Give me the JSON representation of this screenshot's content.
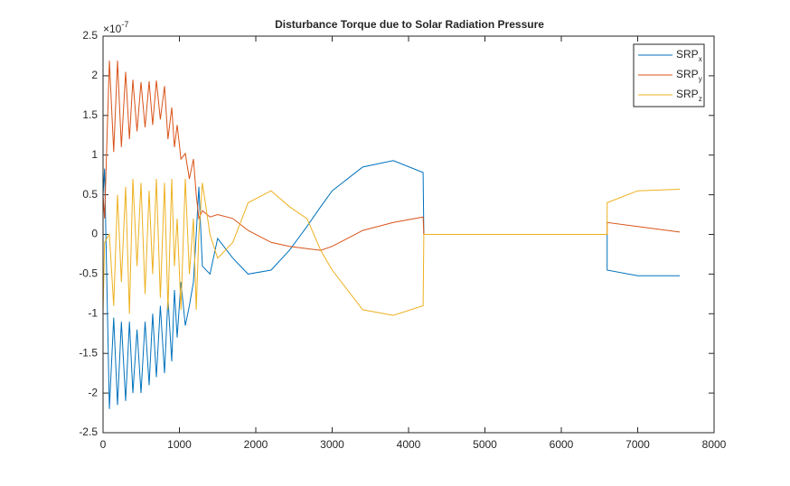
{
  "chart_data": {
    "type": "line",
    "title": "Disturbance Torque due to Solar Radiation Pressure",
    "y_multiplier": {
      "base": "×10",
      "exponent": "-7"
    },
    "xlim": [
      0,
      8000
    ],
    "xticks": [
      0,
      1000,
      2000,
      3000,
      4000,
      5000,
      6000,
      7000,
      8000
    ],
    "ylim": [
      -2.5,
      2.5
    ],
    "yticks": [
      -2.5,
      -2,
      -1.5,
      -1,
      -0.5,
      0,
      0.5,
      1,
      1.5,
      2,
      2.5
    ],
    "legend": "top-right",
    "series": [
      {
        "name": "SRP",
        "subscript": "x",
        "color": "#0072bd",
        "x": [
          0,
          20,
          83,
          140,
          189,
          240,
          296,
          345,
          391,
          445,
          497,
          550,
          604,
          650,
          698,
          750,
          805,
          850,
          899,
          935,
          970,
          1020,
          1077,
          1130,
          1183,
          1220,
          1254,
          1300,
          1400,
          1500,
          1700,
          1900,
          2200,
          2440,
          2670,
          2850,
          3000,
          3400,
          3800,
          4190,
          4200,
          6600,
          6600,
          7000,
          7550
        ],
        "values": [
          0.5,
          0.83,
          -2.2,
          -1.05,
          -2.15,
          -1.1,
          -2.1,
          -1.1,
          -2.0,
          -1.2,
          -2.0,
          -1.1,
          -1.9,
          -1.0,
          -1.8,
          -0.9,
          -1.75,
          -0.8,
          -1.6,
          -0.7,
          -1.3,
          -0.6,
          -1.15,
          -0.9,
          -0.6,
          0.0,
          0.6,
          -0.4,
          -0.5,
          -0.05,
          -0.3,
          -0.5,
          -0.45,
          -0.2,
          0.1,
          0.35,
          0.55,
          0.85,
          0.93,
          0.78,
          0,
          0,
          -0.45,
          -0.52,
          -0.52
        ]
      },
      {
        "name": "SRP",
        "subscript": "y",
        "color": "#d95319",
        "x": [
          0,
          20,
          83,
          140,
          189,
          240,
          296,
          345,
          391,
          445,
          497,
          550,
          604,
          650,
          698,
          750,
          805,
          850,
          899,
          935,
          970,
          1020,
          1077,
          1130,
          1183,
          1220,
          1254,
          1300,
          1400,
          1500,
          1700,
          1900,
          2200,
          2440,
          2670,
          2850,
          3000,
          3400,
          3800,
          4190,
          4200,
          6600,
          6600,
          7000,
          7550
        ],
        "values": [
          0.5,
          0.2,
          2.19,
          1.04,
          2.19,
          1.1,
          2.05,
          1.2,
          1.95,
          1.3,
          1.92,
          1.35,
          1.93,
          1.38,
          1.94,
          1.45,
          1.87,
          1.2,
          1.6,
          1.1,
          1.38,
          0.95,
          1.02,
          0.7,
          0.95,
          0.5,
          0.2,
          0.3,
          0.22,
          0.25,
          0.2,
          0.05,
          -0.1,
          -0.15,
          -0.18,
          -0.2,
          -0.15,
          0.05,
          0.15,
          0.22,
          0,
          0,
          0.15,
          0.1,
          0.03
        ]
      },
      {
        "name": "SRP",
        "subscript": "z",
        "color": "#edb120",
        "x": [
          0,
          20,
          83,
          140,
          189,
          240,
          296,
          345,
          391,
          445,
          497,
          550,
          604,
          650,
          698,
          750,
          805,
          850,
          899,
          935,
          970,
          1020,
          1077,
          1130,
          1183,
          1220,
          1254,
          1300,
          1400,
          1500,
          1700,
          1900,
          2200,
          2440,
          2670,
          2850,
          3000,
          3400,
          3800,
          4190,
          4200,
          6600,
          6600,
          7000,
          7550
        ],
        "values": [
          -1.0,
          -0.1,
          0.0,
          -0.9,
          0.5,
          -0.6,
          0.6,
          -1.0,
          0.7,
          -0.4,
          0.65,
          -0.75,
          0.55,
          -0.5,
          0.7,
          -0.8,
          0.65,
          -0.95,
          0.7,
          -0.4,
          0.2,
          -0.95,
          0.7,
          -0.5,
          0.2,
          -0.95,
          0.0,
          0.65,
          0.0,
          -0.3,
          -0.1,
          0.4,
          0.55,
          0.35,
          0.2,
          -0.2,
          -0.45,
          -0.95,
          -1.02,
          -0.9,
          0,
          0,
          0.4,
          0.55,
          0.57
        ]
      }
    ]
  }
}
